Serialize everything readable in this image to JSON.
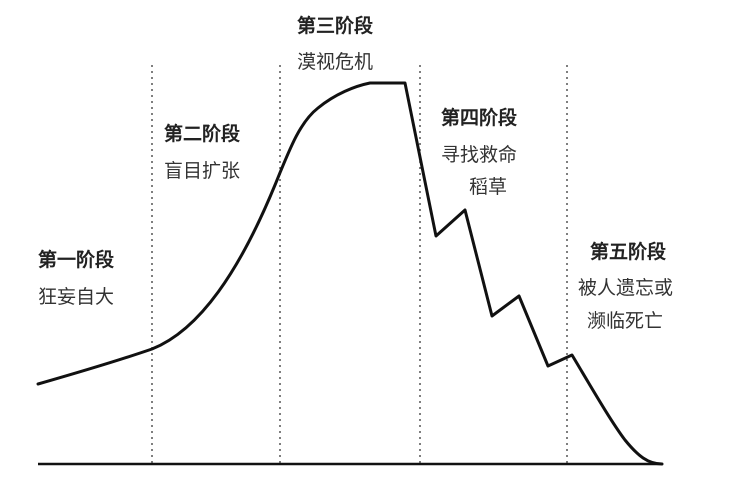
{
  "diagram": {
    "stages": [
      {
        "title": "第一阶段",
        "desc": [
          "狂妄自大"
        ]
      },
      {
        "title": "第二阶段",
        "desc": [
          "盲目扩张"
        ]
      },
      {
        "title": "第三阶段",
        "desc": [
          "漠视危机"
        ]
      },
      {
        "title": "第四阶段",
        "desc": [
          "寻找救命",
          "稻草"
        ]
      },
      {
        "title": "第五阶段",
        "desc": [
          "被人遗忘或",
          "濒临死亡"
        ]
      }
    ],
    "colors": {
      "curve": "#111111",
      "axis": "#111111",
      "divider": "#555555",
      "background": "#ffffff"
    }
  }
}
